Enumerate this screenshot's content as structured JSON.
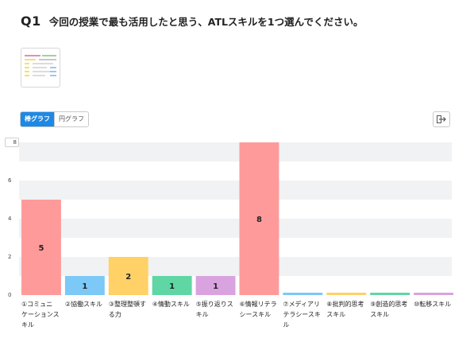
{
  "question": {
    "number": "Q1",
    "text": "今回の授業で最も活用したと思う、ATLスキルを1つ選んでください。"
  },
  "thumbnail": {
    "icon": "document-thumbnail"
  },
  "toggle": {
    "bar_label": "棒グラフ",
    "pie_label": "円グラフ",
    "selected": "bar"
  },
  "export_icon": "export-icon",
  "colors": {
    "accent": "#1e88e5",
    "band": "#f1f2f4"
  },
  "chart_data": {
    "type": "bar",
    "categories": [
      "①コミュニケーションスキル",
      "②協働スキル",
      "③整理整頓する力",
      "④情動スキル",
      "⑤振り返りスキル",
      "⑥情報リテラシースキル",
      "⑦メディアリテラシースキル",
      "⑧批判的思考スキル",
      "⑨創造的思考スキル",
      "⑩転移スキル"
    ],
    "labels_display": [
      [
        "①コミュニ",
        "ケーションス",
        "キル"
      ],
      [
        "②協働スキル"
      ],
      [
        "③整理整頓す",
        "る力"
      ],
      [
        "④情動スキル"
      ],
      [
        "⑤振り返りス",
        "キル"
      ],
      [
        "⑥情報リテラ",
        "シースキル"
      ],
      [
        "⑦メディアリ",
        "テラシースキ",
        "ル"
      ],
      [
        "⑧批判的思考",
        "スキル"
      ],
      [
        "⑨創造的思考",
        "スキル"
      ],
      [
        "⑩転移スキル"
      ]
    ],
    "values": [
      5,
      1,
      2,
      1,
      1,
      8,
      0,
      0,
      0,
      0
    ],
    "bar_colors": [
      "#ff9a9a",
      "#7cc8f7",
      "#ffd166",
      "#5fd6a4",
      "#d9a3e0",
      "#ff9a9a",
      "#7cc8f7",
      "#ffd166",
      "#5fd6a4",
      "#d9a3e0"
    ],
    "ylim": [
      0,
      8
    ],
    "yticks": [
      0,
      2,
      4,
      6,
      8
    ],
    "grid": true
  }
}
